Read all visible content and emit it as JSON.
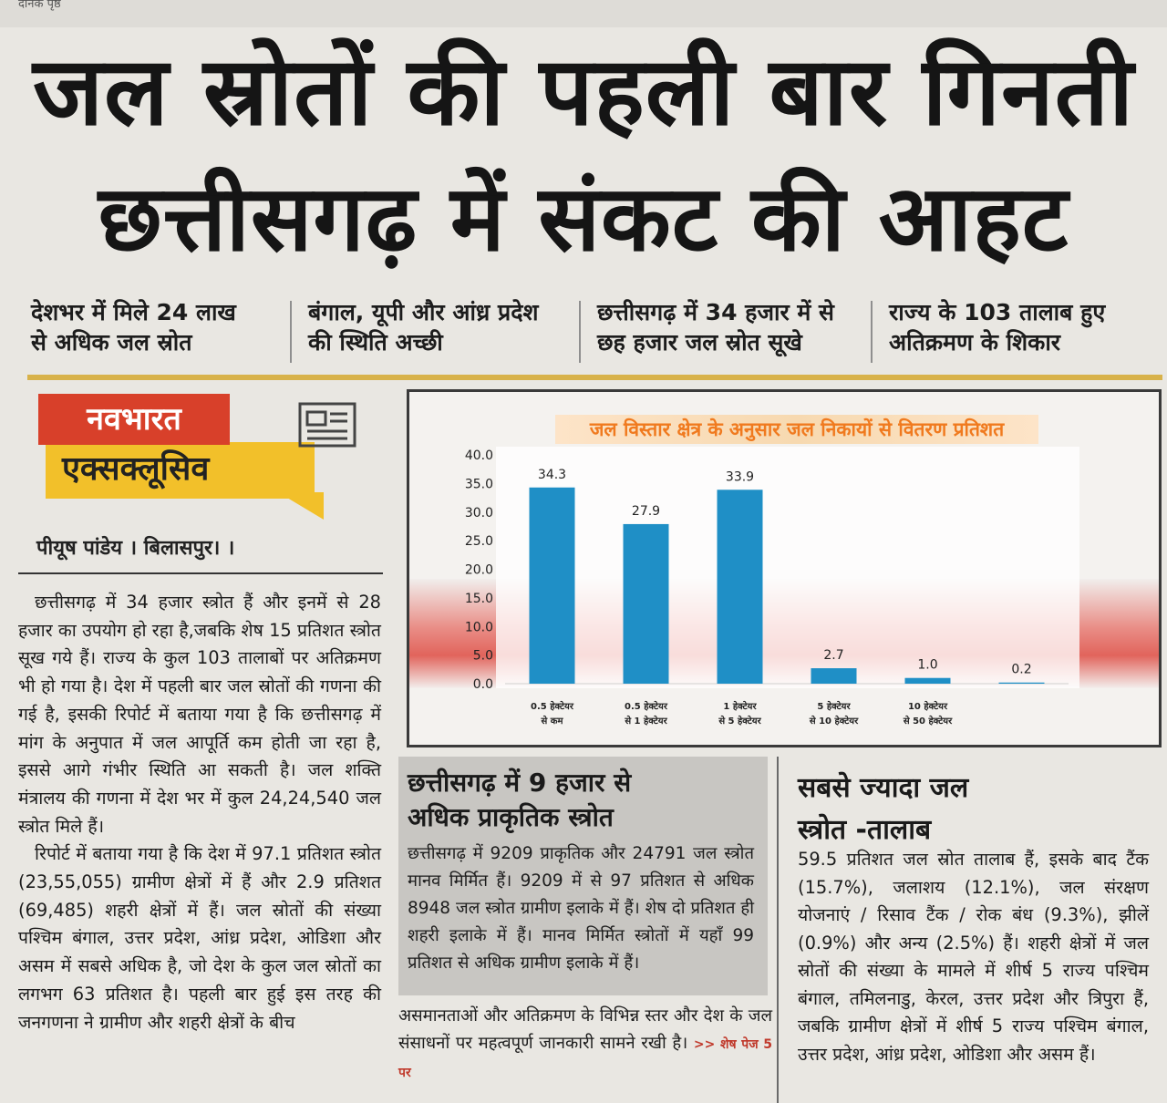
{
  "top_strip": "दैनिक पृष्ठ",
  "headline": {
    "line1": "जल स्रोतों की पहली बार गिनती",
    "line2": "छत्तीसगढ़ में संकट की आहट"
  },
  "subheads": [
    {
      "l1": "देशभर में मिले 24 लाख",
      "l2": "से अधिक जल स्रोत"
    },
    {
      "l1": "बंगाल, यूपी और आंध्र प्रदेश",
      "l2": "की स्थिति अच्छी"
    },
    {
      "l1": "छत्तीसगढ़ में 34 हजार में से",
      "l2": "छह हजार जल स्रोत सूखे"
    },
    {
      "l1": "राज्य के 103 तालाब हुए",
      "l2": "अतिक्रमण के शिकार"
    }
  ],
  "badge": {
    "top": "नवभारत",
    "bottom": "एक्सक्लूसिव"
  },
  "byline": "पीयूष पांडेय । बिलासपुर। ।",
  "left_article": {
    "p1": "छत्तीसगढ़ में 34 हजार स्त्रोत हैं और इनमें से 28 हजार का उपयोग हो रहा है,जबकि शेष 15 प्रतिशत स्त्रोत सूख गये हैं। राज्य के कुल 103 तालाबों पर अतिक्रमण भी हो गया है। देश में पहली बार जल स्रोतों की गणना की गई है, इसकी रिपोर्ट में बताया गया है कि छत्तीसगढ़ में मांग के अनुपात में जल आपूर्ति कम होती जा रहा है, इससे आगे गंभीर स्थिति आ सकती है। जल शक्ति मंत्रालय की गणना में देश भर में कुल 24,24,540 जल स्त्रोत मिले हैं।",
    "p2": "रिपोर्ट में बताया गया है कि देश में 97.1 प्रतिशत स्त्रोत (23,55,055) ग्रामीण क्षेत्रों में हैं और 2.9 प्रतिशत (69,485) शहरी क्षेत्रों में हैं। जल स्रोतों की संख्या पश्चिम बंगाल, उत्तर प्रदेश, आंध्र प्रदेश, ओडिशा और असम में सबसे अधिक है, जो देश के कुल जल स्रोतों का लगभग 63 प्रतिशत है। पहली बार हुई इस तरह की जनगणना ने ग्रामीण और शहरी क्षेत्रों के बीच"
  },
  "chart_data": {
    "type": "bar",
    "title": "जल विस्तार क्षेत्र के अनुसार जल निकायों से वितरण प्रतिशत",
    "categories": [
      [
        "0.5 हेक्टेयर",
        "से कम"
      ],
      [
        "0.5 हेक्टेयर",
        "से 1 हेक्टेयर"
      ],
      [
        "1 हेक्टेयर",
        "से 5 हेक्टेयर"
      ],
      [
        "5 हेक्टेयर",
        "से 10 हेक्टेयर"
      ],
      [
        "10 हेक्टेयर",
        "से 50 हेक्टेयर"
      ],
      [
        "",
        ""
      ]
    ],
    "values": [
      34.3,
      27.9,
      33.9,
      2.7,
      1.0,
      0.2
    ],
    "value_labels": [
      "34.3",
      "27.9",
      "33.9",
      "2.7",
      "1.0",
      "0.2"
    ],
    "yticks": [
      "0.0",
      "5.0",
      "10.0",
      "15.0",
      "20.0",
      "25.0",
      "30.0",
      "35.0",
      "40.0"
    ],
    "ylim": [
      0,
      40
    ],
    "bar_color": "#1f8fc6",
    "grid": false
  },
  "mid_box": {
    "heading1": "छत्तीसगढ़ में 9 हजार से",
    "heading2": "अधिक प्राकृतिक स्त्रोत",
    "text": "छत्तीसगढ़ में 9209 प्राकृतिक और 24791 जल स्त्रोत मानव मिर्मित हैं। 9209 में से 97 प्रतिशत से अधिक 8948 जल स्त्रोत ग्रामीण इलाके में हैं। शेष दो प्रतिशत ही शहरी इलाके में हैं। मानव मिर्मित स्त्रोतों में यहाँ 99 प्रतिशत से अधिक ग्रामीण इलाके में हैं।"
  },
  "mid_bottom": {
    "text": "असमानताओं और अतिक्रमण के विभिन्न स्तर और देश के जल संसाधनों पर महत्वपूर्ण जानकारी सामने रखी है।",
    "see_page": ">> शेष पेज 5 पर"
  },
  "right_box": {
    "heading1": "सबसे ज्यादा जल",
    "heading2": "स्त्रोत -तालाब",
    "text": "59.5 प्रतिशत जल स्रोत तालाब हैं, इसके बाद टैंक (15.7%), जलाशय (12.1%), जल संरक्षण योजनाएं / रिसाव टैंक / रोक बंध (9.3%), झीलें (0.9%) और अन्य (2.5%) हैं। शहरी क्षेत्रों में जल स्रोतों की संख्या के मामले में शीर्ष 5 राज्य पश्चिम बंगाल, तमिलनाडु, केरल, उत्तर प्रदेश और त्रिपुरा हैं, जबकि ग्रामीण क्षेत्रों में शीर्ष 5 राज्य पश्चिम बंगाल, उत्तर प्रदेश, आंध्र प्रदेश, ओडिशा और असम हैं।"
  }
}
